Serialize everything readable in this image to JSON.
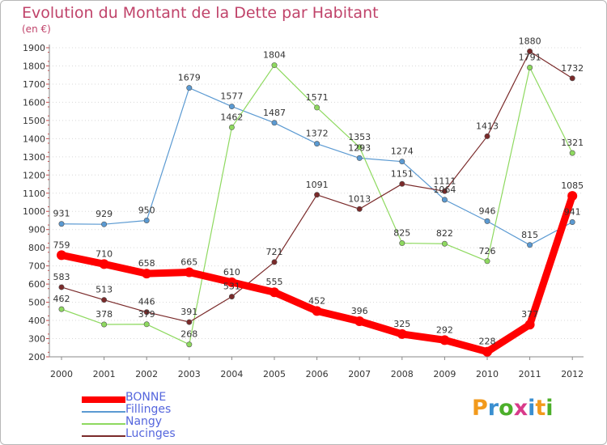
{
  "header": {
    "title": "Evolution du Montant de la Dette par Habitant",
    "unit": "(en €)"
  },
  "logo": {
    "text": "Proxiti",
    "letters": [
      {
        "ch": "P",
        "color": "#f29a1c"
      },
      {
        "ch": "r",
        "color": "#3a8fd0"
      },
      {
        "ch": "o",
        "color": "#4caf2a"
      },
      {
        "ch": "x",
        "color": "#d93a8a"
      },
      {
        "ch": "i",
        "color": "#3a8fd0"
      },
      {
        "ch": "t",
        "color": "#f29a1c"
      },
      {
        "ch": "i",
        "color": "#4caf2a"
      }
    ]
  },
  "chart_data": {
    "type": "line",
    "title": "Evolution du Montant de la Dette par Habitant",
    "ylabel": "(en €)",
    "xlabel": "",
    "x": [
      "2000",
      "2001",
      "2002",
      "2003",
      "2004",
      "2005",
      "2006",
      "2007",
      "2008",
      "2009",
      "2010",
      "2011",
      "2012"
    ],
    "ylim": [
      200,
      1900
    ],
    "yticks": [
      200,
      300,
      400,
      500,
      600,
      700,
      800,
      900,
      1000,
      1100,
      1200,
      1300,
      1400,
      1500,
      1600,
      1700,
      1800,
      1900
    ],
    "grid": "horizontal-dotted",
    "legend": "bottom-left",
    "series": [
      {
        "name": "BONNE",
        "color": "#ff0000",
        "width": 9,
        "values": [
          759,
          710,
          658,
          665,
          610,
          555,
          452,
          396,
          325,
          292,
          228,
          377,
          1085
        ]
      },
      {
        "name": "Fillinges",
        "color": "#5b9ad2",
        "width": 1.2,
        "values": [
          931,
          929,
          950,
          1679,
          1577,
          1487,
          1372,
          1293,
          1274,
          1064,
          946,
          815,
          941
        ]
      },
      {
        "name": "Nangy",
        "color": "#8ed95f",
        "width": 1.2,
        "values": [
          462,
          378,
          379,
          268,
          1462,
          1804,
          1571,
          1353,
          825,
          822,
          726,
          1791,
          1321
        ]
      },
      {
        "name": "Lucinges",
        "color": "#7a2a2a",
        "width": 1.2,
        "values": [
          583,
          513,
          446,
          391,
          531,
          721,
          1091,
          1013,
          1151,
          1111,
          1413,
          1880,
          1732
        ]
      }
    ]
  }
}
